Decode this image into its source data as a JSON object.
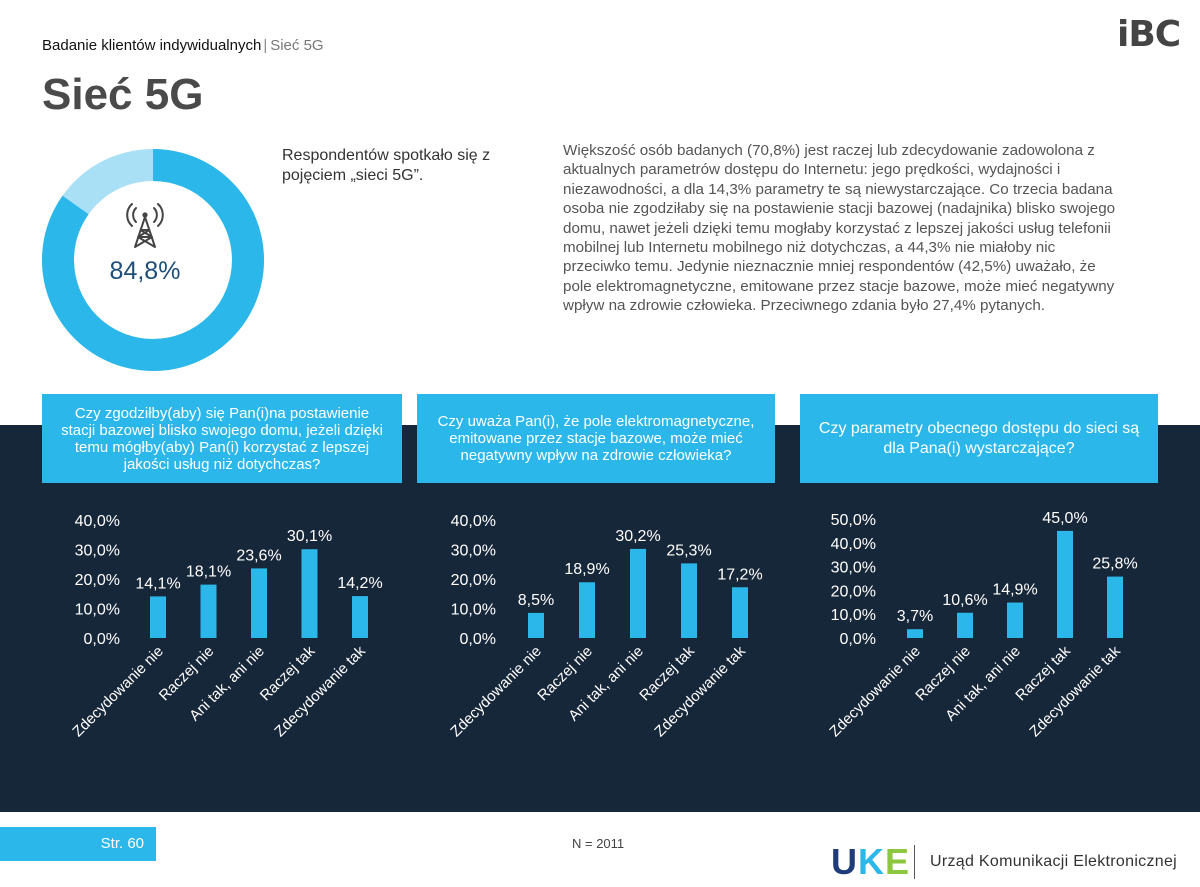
{
  "header": {
    "breadcrumb_main": "Badanie klientów indywidualnych",
    "breadcrumb_sep": "|",
    "breadcrumb_sub": "Sieć 5G",
    "logo_text": "iBC"
  },
  "title": "Sieć 5G",
  "donut": {
    "value_label": "84,8%",
    "value": 84.8,
    "icon": "radio-tower-icon",
    "colors": {
      "filled": "#2cb7ea",
      "rest": "#a9e0f6"
    }
  },
  "intro": "Respondentów spotkało się z pojęciem „sieci 5G”.",
  "summary": "Większość osób badanych (70,8%) jest raczej lub zdecydowanie zadowolona z aktualnych parametrów dostępu do Internetu: jego prędkości, wydajności i niezawodności, a dla 14,3% parametry te są niewystarczające. Co trzecia badana osoba nie zgodziłaby się na postawienie stacji bazowej (nadajnika) blisko swojego domu, nawet jeżeli dzięki temu mogłaby korzystać z lepszej jakości usług telefonii mobilnej lub Internetu mobilnego niż dotychczas, a 44,3% nie miałoby nic przeciwko temu. Jedynie nieznacznie mniej respondentów (42,5%) uważało, że pole elektromagnetyczne, emitowane przez stacje bazowe, może mieć negatywny wpływ na zdrowie człowieka. Przeciwnego zdania było 27,4% pytanych.",
  "colors": {
    "accent": "#2cb7ea",
    "dark_band": "#17273a",
    "bar": "#2cb7ea"
  },
  "chart_data": [
    {
      "type": "bar",
      "title": "Czy zgodziłby(aby) się Pan(i)na postawienie stacji bazowej blisko swojego domu, jeżeli dzięki temu mógłby(aby) Pan(i) korzystać z lepszej jakości usług niż dotychczas?",
      "categories": [
        "Zdecydowanie nie",
        "Raczej nie",
        "Ani tak, ani nie",
        "Raczej tak",
        "Zdecydowanie tak"
      ],
      "values": [
        14.1,
        18.1,
        23.6,
        30.1,
        14.2
      ],
      "value_labels": [
        "14,1%",
        "18,1%",
        "23,6%",
        "30,1%",
        "14,2%"
      ],
      "ylim": [
        0,
        40
      ],
      "yticks": [
        "0,0%",
        "10,0%",
        "20,0%",
        "30,0%",
        "40,0%"
      ],
      "grid": false
    },
    {
      "type": "bar",
      "title": "Czy uważa Pan(i), że pole elektromagnetyczne, emitowane przez stacje bazowe, może mieć negatywny wpływ na zdrowie człowieka?",
      "categories": [
        "Zdecydowanie nie",
        "Raczej nie",
        "Ani tak, ani nie",
        "Raczej tak",
        "Zdecydowanie tak"
      ],
      "values": [
        8.5,
        18.9,
        30.2,
        25.3,
        17.2
      ],
      "value_labels": [
        "8,5%",
        "18,9%",
        "30,2%",
        "25,3%",
        "17,2%"
      ],
      "ylim": [
        0,
        40
      ],
      "yticks": [
        "0,0%",
        "10,0%",
        "20,0%",
        "30,0%",
        "40,0%"
      ],
      "grid": false
    },
    {
      "type": "bar",
      "title": "Czy parametry obecnego dostępu do sieci są dla Pana(i) wystarczające?",
      "categories": [
        "Zdecydowanie nie",
        "Raczej nie",
        "Ani tak, ani nie",
        "Raczej tak",
        "Zdecydowanie tak"
      ],
      "values": [
        3.7,
        10.6,
        14.9,
        45.0,
        25.8
      ],
      "value_labels": [
        "3,7%",
        "10,6%",
        "14,9%",
        "45,0%",
        "25,8%"
      ],
      "ylim": [
        0,
        50
      ],
      "yticks": [
        "0,0%",
        "10,0%",
        "20,0%",
        "30,0%",
        "40,0%",
        "50,0%"
      ],
      "grid": false
    }
  ],
  "footer": {
    "page_label": "Str. 60",
    "sample_size": "N = 2011",
    "uke_letters": [
      "U",
      "K",
      "E"
    ],
    "uke_name": "Urząd Komunikacji Elektronicznej"
  }
}
